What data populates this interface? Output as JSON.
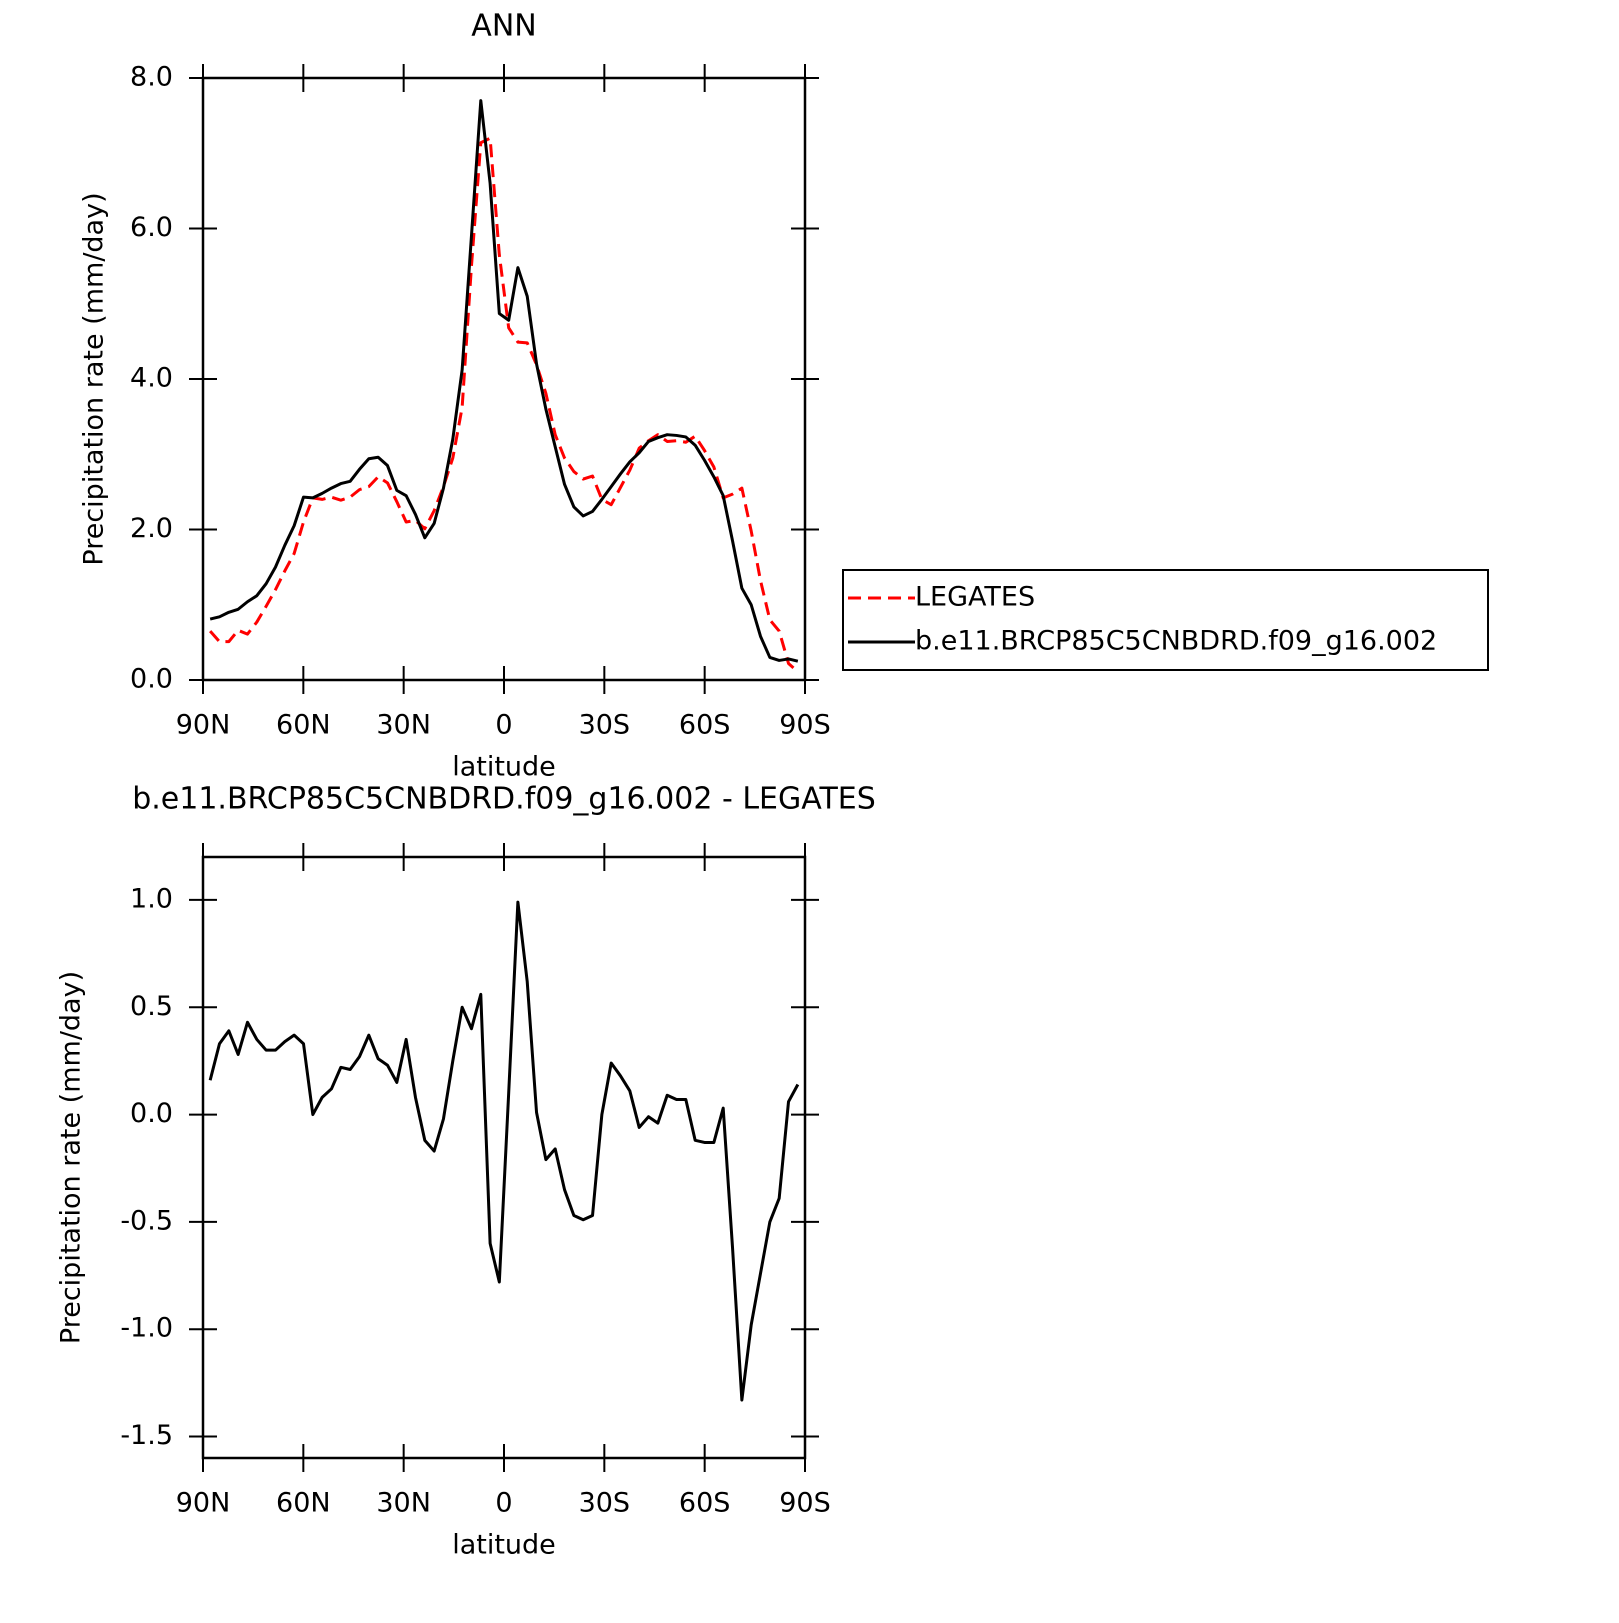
{
  "chart_data": [
    {
      "type": "line",
      "title": "ANN",
      "xlabel": "latitude",
      "ylabel": "Precipitation rate (mm/day)",
      "x": [
        87.86,
        85.07,
        82.28,
        79.49,
        76.7,
        73.91,
        71.12,
        68.33,
        65.54,
        62.75,
        59.95,
        57.16,
        54.37,
        51.58,
        48.79,
        46.0,
        43.21,
        40.42,
        37.63,
        34.84,
        32.05,
        29.26,
        26.47,
        23.68,
        20.89,
        18.1,
        15.31,
        12.52,
        9.73,
        6.94,
        4.15,
        1.4,
        -1.4,
        -4.15,
        -6.94,
        -9.73,
        -12.52,
        -15.31,
        -18.1,
        -20.89,
        -23.68,
        -26.47,
        -29.26,
        -32.05,
        -34.84,
        -37.63,
        -40.42,
        -43.21,
        -46.0,
        -48.79,
        -51.58,
        -54.37,
        -57.16,
        -59.95,
        -62.75,
        -65.54,
        -68.33,
        -71.12,
        -73.91,
        -76.7,
        -79.49,
        -82.28,
        -85.07,
        -87.86
      ],
      "xlim": [
        90,
        -90
      ],
      "xticks": [
        {
          "value": 90,
          "label": "90N"
        },
        {
          "value": 60,
          "label": "60N"
        },
        {
          "value": 30,
          "label": "30N"
        },
        0,
        {
          "value": -30,
          "label": "30S"
        },
        {
          "value": -60,
          "label": "60S"
        },
        {
          "value": -90,
          "label": "90S"
        }
      ],
      "ylim": [
        0,
        8
      ],
      "yticks": [
        {
          "value": 0,
          "label": "0.0"
        },
        {
          "value": 2,
          "label": "2.0"
        },
        {
          "value": 4,
          "label": "4.0"
        },
        {
          "value": 6,
          "label": "6.0"
        },
        {
          "value": 8,
          "label": "8.0"
        }
      ],
      "legend": "right",
      "series": [
        {
          "name": "LEGATES",
          "color": "#ff0000",
          "dashed": true,
          "values": [
            0.65,
            0.51,
            0.51,
            0.66,
            0.61,
            0.77,
            0.98,
            1.2,
            1.45,
            1.68,
            2.1,
            2.42,
            2.4,
            2.43,
            2.39,
            2.43,
            2.53,
            2.57,
            2.7,
            2.62,
            2.37,
            2.1,
            2.12,
            2.01,
            2.25,
            2.57,
            2.95,
            3.62,
            5.5,
            7.14,
            7.2,
            5.65,
            4.68,
            4.49,
            4.48,
            4.19,
            3.81,
            3.26,
            2.95,
            2.77,
            2.67,
            2.71,
            2.4,
            2.33,
            2.56,
            2.79,
            3.08,
            3.18,
            3.26,
            3.17,
            3.18,
            3.16,
            3.24,
            3.05,
            2.83,
            2.42,
            2.47,
            2.55,
            1.98,
            1.32,
            0.8,
            0.65,
            0.22,
            0.11
          ]
        },
        {
          "name": "b.e11.BRCP85C5CNBDRD.f09_g16.002",
          "color": "#000000",
          "dashed": false,
          "values": [
            0.81,
            0.84,
            0.9,
            0.94,
            1.04,
            1.12,
            1.28,
            1.5,
            1.79,
            2.05,
            2.43,
            2.42,
            2.48,
            2.55,
            2.61,
            2.64,
            2.8,
            2.94,
            2.96,
            2.85,
            2.52,
            2.45,
            2.2,
            1.89,
            2.08,
            2.55,
            3.2,
            4.12,
            5.9,
            7.7,
            6.6,
            4.87,
            4.78,
            5.48,
            5.1,
            4.2,
            3.6,
            3.1,
            2.6,
            2.3,
            2.18,
            2.24,
            2.4,
            2.57,
            2.74,
            2.9,
            3.02,
            3.17,
            3.22,
            3.26,
            3.25,
            3.23,
            3.12,
            2.92,
            2.7,
            2.45,
            1.85,
            1.22,
            1.0,
            0.58,
            0.3,
            0.26,
            0.28,
            0.25
          ]
        }
      ]
    },
    {
      "type": "line",
      "title": "b.e11.BRCP85C5CNBDRD.f09_g16.002 - LEGATES",
      "xlabel": "latitude",
      "ylabel": "Precipitation rate (mm/day)",
      "x": [
        87.86,
        85.07,
        82.28,
        79.49,
        76.7,
        73.91,
        71.12,
        68.33,
        65.54,
        62.75,
        59.95,
        57.16,
        54.37,
        51.58,
        48.79,
        46.0,
        43.21,
        40.42,
        37.63,
        34.84,
        32.05,
        29.26,
        26.47,
        23.68,
        20.89,
        18.1,
        15.31,
        12.52,
        9.73,
        6.94,
        4.15,
        1.4,
        -1.4,
        -4.15,
        -6.94,
        -9.73,
        -12.52,
        -15.31,
        -18.1,
        -20.89,
        -23.68,
        -26.47,
        -29.26,
        -32.05,
        -34.84,
        -37.63,
        -40.42,
        -43.21,
        -46.0,
        -48.79,
        -51.58,
        -54.37,
        -57.16,
        -59.95,
        -62.75,
        -65.54,
        -68.33,
        -71.12,
        -73.91,
        -76.7,
        -79.49,
        -82.28,
        -85.07,
        -87.86
      ],
      "xlim": [
        90,
        -90
      ],
      "xticks": [
        {
          "value": 90,
          "label": "90N"
        },
        {
          "value": 60,
          "label": "60N"
        },
        {
          "value": 30,
          "label": "30N"
        },
        0,
        {
          "value": -30,
          "label": "30S"
        },
        {
          "value": -60,
          "label": "60S"
        },
        {
          "value": -90,
          "label": "90S"
        }
      ],
      "ylim": [
        -1.6,
        1.2
      ],
      "yticks": [
        {
          "value": 1,
          "label": "1.0"
        },
        0.5,
        {
          "value": 0,
          "label": "0.0"
        },
        -0.5,
        {
          "value": -1,
          "label": "-1.0"
        },
        -1.5
      ],
      "color": "#000000",
      "values": [
        0.16,
        0.33,
        0.39,
        0.28,
        0.43,
        0.35,
        0.3,
        0.3,
        0.34,
        0.37,
        0.33,
        0.0,
        0.08,
        0.12,
        0.22,
        0.21,
        0.27,
        0.37,
        0.26,
        0.23,
        0.15,
        0.35,
        0.08,
        -0.12,
        -0.17,
        -0.02,
        0.25,
        0.5,
        0.4,
        0.56,
        -0.6,
        -0.78,
        0.1,
        0.99,
        0.62,
        0.01,
        -0.21,
        -0.16,
        -0.35,
        -0.47,
        -0.49,
        -0.47,
        0.0,
        0.24,
        0.18,
        0.11,
        -0.06,
        -0.01,
        -0.04,
        0.09,
        0.07,
        0.07,
        -0.12,
        -0.13,
        -0.13,
        0.03,
        -0.62,
        -1.33,
        -0.98,
        -0.74,
        -0.5,
        -0.39,
        0.06,
        0.14
      ]
    }
  ]
}
